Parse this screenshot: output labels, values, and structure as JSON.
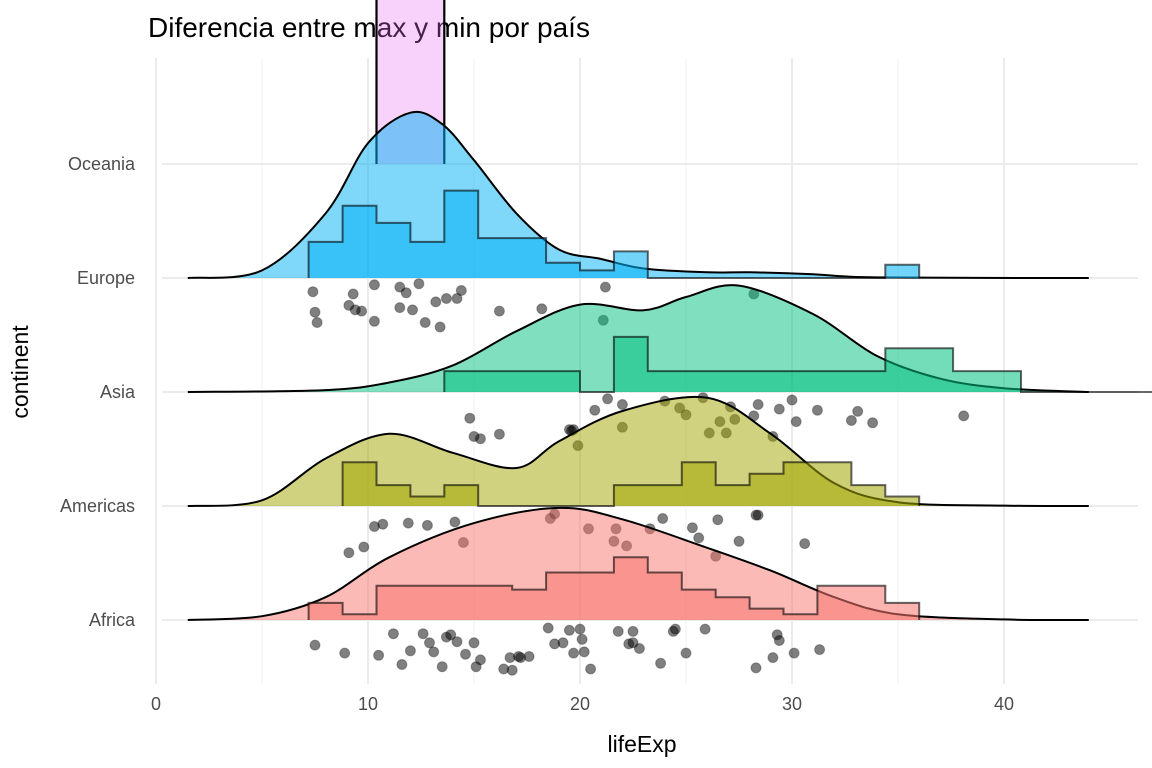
{
  "chart_data": {
    "type": "raincloud",
    "title": "Diferencia entre max y min por país",
    "xlabel": "lifeExp",
    "ylabel": "continent",
    "xlim": [
      0,
      45
    ],
    "x_ticks": [
      0,
      10,
      20,
      30,
      40
    ],
    "categories": [
      "Africa",
      "Americas",
      "Asia",
      "Europe",
      "Oceania"
    ],
    "grid": true,
    "legend": "none",
    "colors": {
      "Africa": "#F8766D",
      "Americas": "#A3A500",
      "Asia": "#00BF7D",
      "Europe": "#00B0F6",
      "Oceania": "#E76BF3"
    },
    "series": [
      {
        "name": "Africa",
        "density": [
          [
            1.5,
            0
          ],
          [
            5,
            0.02
          ],
          [
            8,
            0.12
          ],
          [
            11,
            0.33
          ],
          [
            15,
            0.51
          ],
          [
            19,
            0.59
          ],
          [
            22,
            0.53
          ],
          [
            26,
            0.38
          ],
          [
            29,
            0.26
          ],
          [
            32,
            0.12
          ],
          [
            35,
            0.03
          ],
          [
            40,
            0.003
          ],
          [
            44,
            0
          ]
        ],
        "histogram": {
          "start": 7.2,
          "width": 1.6,
          "heights": [
            0.09,
            0.03,
            0.18,
            0.18,
            0.18,
            0.18,
            0.16,
            0.25,
            0.25,
            0.33,
            0.25,
            0.16,
            0.12,
            0.06,
            0.03,
            0.18,
            0.18,
            0.09
          ]
        },
        "points": [
          [
            7.5,
            -0.22
          ],
          [
            8.9,
            -0.29
          ],
          [
            10.5,
            -0.31
          ],
          [
            11.2,
            -0.12
          ],
          [
            11.6,
            -0.39
          ],
          [
            12,
            -0.27
          ],
          [
            12.6,
            -0.12
          ],
          [
            12.9,
            -0.2
          ],
          [
            13.1,
            -0.28
          ],
          [
            13.5,
            -0.41
          ],
          [
            13.7,
            -0.15
          ],
          [
            13.9,
            -0.13
          ],
          [
            14.2,
            -0.19
          ],
          [
            14.6,
            -0.3
          ],
          [
            15,
            -0.2
          ],
          [
            15.1,
            -0.41
          ],
          [
            15.3,
            -0.35
          ],
          [
            16.4,
            -0.43
          ],
          [
            16.7,
            -0.33
          ],
          [
            16.8,
            -0.44
          ],
          [
            17.1,
            -0.32
          ],
          [
            17.2,
            -0.33
          ],
          [
            17.6,
            -0.32
          ],
          [
            18.5,
            -0.07
          ],
          [
            18.8,
            -0.21
          ],
          [
            19.2,
            -0.2
          ],
          [
            19.5,
            -0.09
          ],
          [
            19.7,
            -0.29
          ],
          [
            20.1,
            -0.17
          ],
          [
            20,
            -0.08
          ],
          [
            20.5,
            -0.43
          ],
          [
            20.2,
            -0.28
          ],
          [
            21.8,
            -0.1
          ],
          [
            22.3,
            -0.21
          ],
          [
            22.5,
            -0.2
          ],
          [
            22.5,
            -0.1
          ],
          [
            22.8,
            -0.25
          ],
          [
            23.8,
            -0.38
          ],
          [
            24.4,
            -0.1
          ],
          [
            24.5,
            -0.08
          ],
          [
            25,
            -0.29
          ],
          [
            25.9,
            -0.08
          ],
          [
            28.3,
            -0.42
          ],
          [
            29.1,
            -0.33
          ],
          [
            29.3,
            -0.13
          ],
          [
            29.4,
            -0.18
          ],
          [
            30.1,
            -0.29
          ],
          [
            31.3,
            -0.26
          ]
        ]
      },
      {
        "name": "Americas",
        "density": [
          [
            1.5,
            0
          ],
          [
            5,
            0.03
          ],
          [
            8,
            0.25
          ],
          [
            11,
            0.38
          ],
          [
            14,
            0.28
          ],
          [
            17,
            0.2
          ],
          [
            19,
            0.34
          ],
          [
            22,
            0.5
          ],
          [
            26,
            0.57
          ],
          [
            29,
            0.38
          ],
          [
            32,
            0.12
          ],
          [
            35,
            0.02
          ],
          [
            40,
            0.002
          ],
          [
            44,
            0
          ]
        ],
        "histogram": {
          "start": 8.8,
          "width": 1.6,
          "heights": [
            0.23,
            0.11,
            0.05,
            0.11,
            0,
            0,
            0,
            0,
            0.11,
            0.11,
            0.23,
            0.11,
            0.17,
            0.23,
            0.23,
            0.11,
            0.05
          ]
        },
        "points": [
          [
            9.1,
            -0.41
          ],
          [
            9.8,
            -0.36
          ],
          [
            10.3,
            -0.18
          ],
          [
            10.7,
            -0.16
          ],
          [
            11.9,
            -0.15
          ],
          [
            12.8,
            -0.17
          ],
          [
            14.1,
            -0.14
          ],
          [
            14.5,
            -0.32
          ],
          [
            18.6,
            -0.11
          ],
          [
            18.8,
            -0.07
          ],
          [
            20.4,
            -0.2
          ],
          [
            21.6,
            -0.31
          ],
          [
            21.7,
            -0.2
          ],
          [
            22.2,
            -0.35
          ],
          [
            23.3,
            -0.2
          ],
          [
            23.9,
            -0.11
          ],
          [
            25.3,
            -0.19
          ],
          [
            25.6,
            -0.28
          ],
          [
            26.4,
            -0.44
          ],
          [
            26.5,
            -0.12
          ],
          [
            27.5,
            -0.31
          ],
          [
            28.3,
            -0.08
          ],
          [
            28.4,
            -0.08
          ],
          [
            30.6,
            -0.33
          ]
        ]
      },
      {
        "name": "Asia",
        "density": [
          [
            1.5,
            0
          ],
          [
            8,
            0.01
          ],
          [
            11,
            0.05
          ],
          [
            14,
            0.14
          ],
          [
            17,
            0.32
          ],
          [
            20,
            0.46
          ],
          [
            23,
            0.43
          ],
          [
            25,
            0.5
          ],
          [
            27.5,
            0.56
          ],
          [
            31,
            0.41
          ],
          [
            34,
            0.19
          ],
          [
            37,
            0.07
          ],
          [
            40,
            0.02
          ],
          [
            44,
            0
          ]
        ],
        "histogram": {
          "start": 13.6,
          "width": 1.6,
          "heights": [
            0.11,
            0.11,
            0.11,
            0.11,
            0,
            0.29,
            0.11,
            0.11,
            0.11,
            0.11,
            0.11,
            0.11,
            0.11,
            0.23,
            0.23,
            0.11,
            0.11,
            0,
            0,
            0,
            0,
            0.06
          ]
        },
        "points": [
          [
            14.8,
            -0.23
          ],
          [
            15,
            -0.39
          ],
          [
            15.3,
            -0.41
          ],
          [
            16.2,
            -0.37
          ],
          [
            19.5,
            -0.33
          ],
          [
            19.6,
            -0.34
          ],
          [
            19.7,
            -0.33
          ],
          [
            19.9,
            -0.47
          ],
          [
            20.7,
            -0.16
          ],
          [
            21.3,
            -0.06
          ],
          [
            22,
            -0.11
          ],
          [
            22,
            -0.31
          ],
          [
            24,
            -0.08
          ],
          [
            24.7,
            -0.14
          ],
          [
            25,
            -0.2
          ],
          [
            25.8,
            -0.05
          ],
          [
            26.1,
            -0.36
          ],
          [
            26.6,
            -0.26
          ],
          [
            26.9,
            -0.36
          ],
          [
            27.1,
            -0.13
          ],
          [
            27.3,
            -0.24
          ],
          [
            28.2,
            -0.21
          ],
          [
            28.4,
            -0.11
          ],
          [
            29.1,
            -0.39
          ],
          [
            29.4,
            -0.15
          ],
          [
            30,
            -0.07
          ],
          [
            30.2,
            -0.26
          ],
          [
            31.2,
            -0.16
          ],
          [
            32.8,
            -0.25
          ],
          [
            33.1,
            -0.17
          ],
          [
            33.8,
            -0.27
          ],
          [
            38.1,
            -0.21
          ]
        ]
      },
      {
        "name": "Europe",
        "density": [
          [
            1.5,
            0
          ],
          [
            5,
            0.04
          ],
          [
            8,
            0.34
          ],
          [
            10,
            0.71
          ],
          [
            12,
            0.87
          ],
          [
            13.5,
            0.81
          ],
          [
            15,
            0.62
          ],
          [
            17,
            0.34
          ],
          [
            19,
            0.15
          ],
          [
            21,
            0.1
          ],
          [
            23,
            0.05
          ],
          [
            26,
            0.03
          ],
          [
            28,
            0.03
          ],
          [
            31,
            0.02
          ],
          [
            34,
            0.003
          ],
          [
            44,
            0
          ]
        ],
        "histogram": {
          "start": 7.2,
          "width": 1.6,
          "heights": [
            0.19,
            0.38,
            0.29,
            0.19,
            0.46,
            0.21,
            0.21,
            0.08,
            0.04,
            0.14,
            0,
            0,
            0,
            0,
            0,
            0,
            0,
            0.07
          ]
        },
        "points": [
          [
            7.4,
            -0.12
          ],
          [
            7.5,
            -0.3
          ],
          [
            7.6,
            -0.39
          ],
          [
            9.1,
            -0.24
          ],
          [
            9.3,
            -0.14
          ],
          [
            9.4,
            -0.28
          ],
          [
            9.7,
            -0.29
          ],
          [
            10.3,
            -0.38
          ],
          [
            10.3,
            -0.06
          ],
          [
            11.5,
            -0.26
          ],
          [
            11.5,
            -0.08
          ],
          [
            11.8,
            -0.13
          ],
          [
            12.1,
            -0.28
          ],
          [
            12.4,
            -0.05
          ],
          [
            12.7,
            -0.39
          ],
          [
            13.2,
            -0.21
          ],
          [
            13.4,
            -0.43
          ],
          [
            13.7,
            -0.18
          ],
          [
            14.2,
            -0.18
          ],
          [
            14.4,
            -0.11
          ],
          [
            16.2,
            -0.29
          ],
          [
            18.2,
            -0.27
          ],
          [
            21.1,
            -0.37
          ],
          [
            21.2,
            -0.08
          ],
          [
            28.2,
            -0.14
          ]
        ]
      },
      {
        "name": "Oceania",
        "histogram": {
          "start": 10.4,
          "width": 3.2,
          "heights": [
            0.92
          ]
        },
        "points": []
      }
    ]
  }
}
